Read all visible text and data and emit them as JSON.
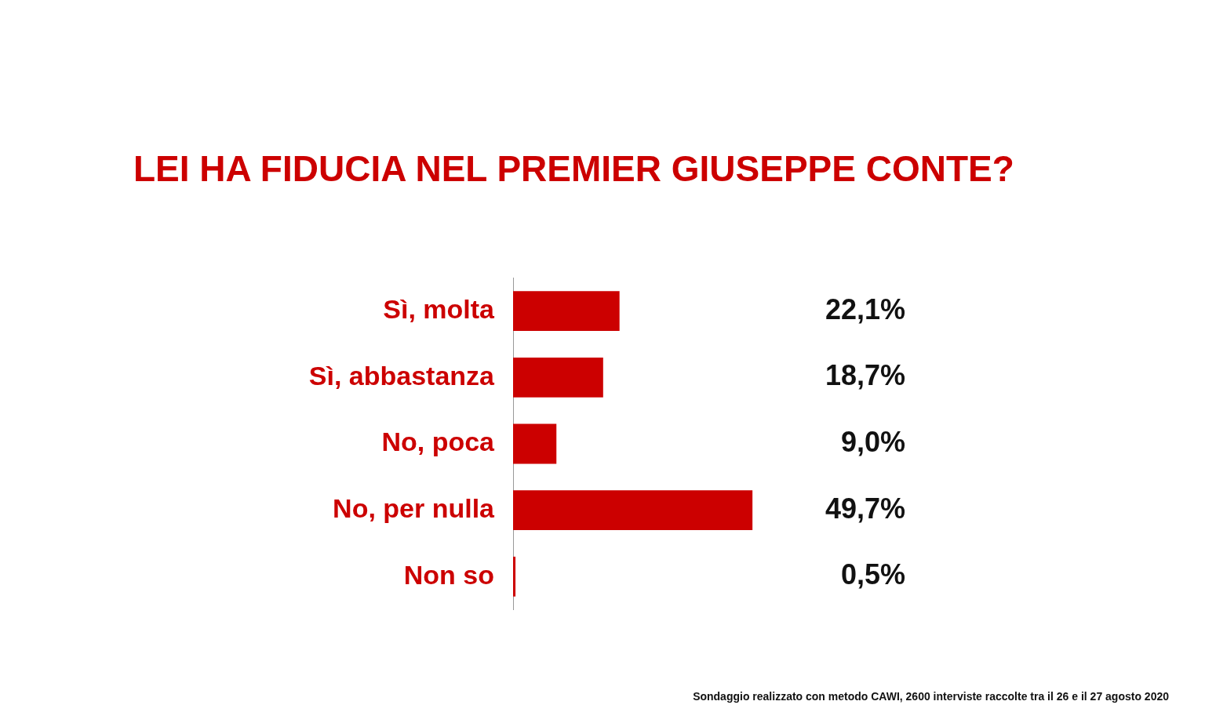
{
  "chart_data": {
    "type": "bar",
    "title": "LEI HA FIDUCIA NEL PREMIER GIUSEPPE CONTE?",
    "orientation": "horizontal",
    "categories": [
      "Sì, molta",
      "Sì, abbastanza",
      "No, poca",
      "No, per nulla",
      "Non so"
    ],
    "values": [
      22.1,
      18.7,
      9.0,
      49.7,
      0.5
    ],
    "value_labels": [
      "22,1%",
      "18,7%",
      "9,0%",
      "49,7%",
      "0,5%"
    ],
    "color": "#cc0000",
    "tick_labels": "y",
    "grid": false,
    "legend": false,
    "annotations": [
      "Sondaggio realizzato con metodo CAWI, 2600 interviste raccolte tra il 26 e il 27 agosto 2020"
    ]
  }
}
